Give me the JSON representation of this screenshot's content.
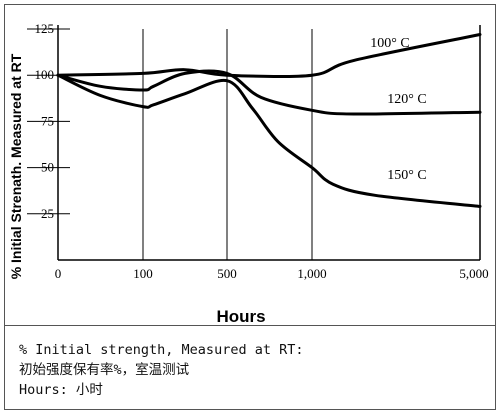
{
  "chart_data": {
    "type": "line",
    "title": "",
    "xlabel": "Hours",
    "ylabel": "% Initial Strenath. Measured at RT",
    "x_ticks": [
      {
        "value": 0,
        "label": "0"
      },
      {
        "value": 100,
        "label": "100"
      },
      {
        "value": 500,
        "label": "500"
      },
      {
        "value": 1000,
        "label": "1,000"
      },
      {
        "value": 5000,
        "label": "5,000"
      }
    ],
    "y_ticks": [
      {
        "value": 25,
        "label": "25"
      },
      {
        "value": 50,
        "label": "50"
      },
      {
        "value": 75,
        "label": "75"
      },
      {
        "value": 100,
        "label": "100"
      },
      {
        "value": 125,
        "label": "125"
      }
    ],
    "ylim": [
      0,
      125
    ],
    "grid": "horizontal dashes and vertical lines at ticks",
    "series": [
      {
        "name": "100° C",
        "x": [
          0,
          100,
          300,
          500,
          1000,
          2000,
          5000
        ],
        "y": [
          100,
          101,
          103,
          100,
          100,
          108,
          122
        ]
      },
      {
        "name": "120° C",
        "x": [
          0,
          50,
          100,
          150,
          300,
          500,
          700,
          1000,
          2000,
          5000
        ],
        "y": [
          100,
          94,
          92,
          94,
          101,
          101,
          88,
          81,
          79,
          80
        ]
      },
      {
        "name": "150° C",
        "x": [
          0,
          50,
          100,
          150,
          300,
          500,
          650,
          800,
          1000,
          1500,
          2500,
          5000
        ],
        "y": [
          100,
          89,
          83,
          84,
          90,
          97,
          82,
          64,
          50,
          41,
          35,
          29
        ]
      }
    ]
  },
  "caption": {
    "line1": "% Initial strength, Measured at RT:",
    "line2": "初始强度保有率%，室温测试",
    "line3": "Hours: 小时"
  }
}
